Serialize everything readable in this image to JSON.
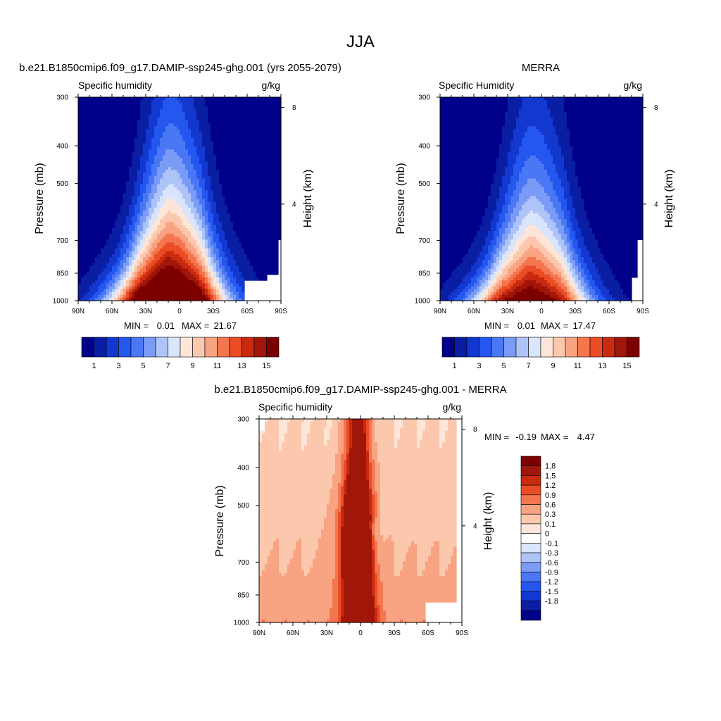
{
  "figure_title": "JJA",
  "chart_data": [
    {
      "type": "contour",
      "title": "b.e21.B1850cmip6.f09_g17.DAMIP-ssp245-ghg.001 (yrs 2055-2079)",
      "left_label": "Specific humidity",
      "right_label": "g/kg",
      "ylabel": "Pressure (mb)",
      "ylabel_right": "Height (km)",
      "x_ticks": [
        "90N",
        "60N",
        "30N",
        "0",
        "30S",
        "60S",
        "90S"
      ],
      "y_ticks": [
        "300",
        "400",
        "500",
        "700",
        "850",
        "1000"
      ],
      "y_right_ticks": [
        "8",
        "4"
      ],
      "stats": {
        "min_label": "MIN =",
        "min": "0.01",
        "max_label": "MAX =",
        "max": "21.67"
      },
      "levels": [
        1,
        2,
        3,
        4,
        5,
        6,
        7,
        8,
        9,
        10,
        11,
        12,
        13,
        14,
        15
      ],
      "colorbar_labels": [
        "1",
        "3",
        "5",
        "7",
        "9",
        "11",
        "13",
        "15"
      ],
      "peak_value": 21.67
    },
    {
      "type": "contour",
      "title": "MERRA",
      "left_label": "Specific Humidity",
      "right_label": "g/kg",
      "ylabel": "Pressure (mb)",
      "ylabel_right": "Height (km)",
      "x_ticks": [
        "90N",
        "60N",
        "30N",
        "0",
        "30S",
        "60S",
        "90S"
      ],
      "y_ticks": [
        "300",
        "400",
        "500",
        "700",
        "850",
        "1000"
      ],
      "y_right_ticks": [
        "8",
        "4"
      ],
      "stats": {
        "min_label": "MIN =",
        "min": "0.01",
        "max_label": "MAX =",
        "max": "17.47"
      },
      "levels": [
        1,
        2,
        3,
        4,
        5,
        6,
        7,
        8,
        9,
        10,
        11,
        12,
        13,
        14,
        15
      ],
      "colorbar_labels": [
        "1",
        "3",
        "5",
        "7",
        "9",
        "11",
        "13",
        "15"
      ],
      "peak_value": 17.47
    },
    {
      "type": "contour",
      "title": "b.e21.B1850cmip6.f09_g17.DAMIP-ssp245-ghg.001 - MERRA",
      "left_label": "Specific humidity",
      "right_label": "g/kg",
      "ylabel": "Pressure (mb)",
      "ylabel_right": "Height (km)",
      "x_ticks": [
        "90N",
        "60N",
        "30N",
        "0",
        "30S",
        "60S",
        "90S"
      ],
      "y_ticks": [
        "300",
        "400",
        "500",
        "700",
        "850",
        "1000"
      ],
      "y_right_ticks": [
        "8",
        "4"
      ],
      "stats": {
        "min_label": "MIN =",
        "min": "-0.19",
        "max_label": "MAX =",
        "max": "4.47"
      },
      "levels": [
        -1.8,
        -1.5,
        -1.2,
        -0.9,
        -0.6,
        -0.3,
        -0.1,
        0,
        0.1,
        0.3,
        0.6,
        0.9,
        1.2,
        1.5,
        1.8
      ],
      "colorbar_labels": [
        "1.8",
        "1.5",
        "1.2",
        "0.9",
        "0.6",
        "0.3",
        "0.1",
        "0",
        "-0.1",
        "-0.3",
        "-0.6",
        "-0.9",
        "-1.2",
        "-1.5",
        "-1.8"
      ]
    }
  ],
  "palettes": {
    "sequential": [
      "#00008b",
      "#0a1ea3",
      "#1238d0",
      "#2456f0",
      "#4a78f5",
      "#7a9cf7",
      "#aec4f9",
      "#d8e5fb",
      "#fde6d8",
      "#fbc8ae",
      "#f8a382",
      "#f4764f",
      "#ea4d25",
      "#c92a10",
      "#a01608",
      "#7d0000"
    ],
    "diverging_top_down": [
      "#7d0000",
      "#a01608",
      "#c92a10",
      "#ea4d25",
      "#f4764f",
      "#f8a382",
      "#fbc8ae",
      "#fde6d8",
      "#ffffff",
      "#d8e5fb",
      "#aec4f9",
      "#7a9cf7",
      "#4a78f5",
      "#2456f0",
      "#1238d0",
      "#0a1ea3",
      "#00008b"
    ]
  }
}
